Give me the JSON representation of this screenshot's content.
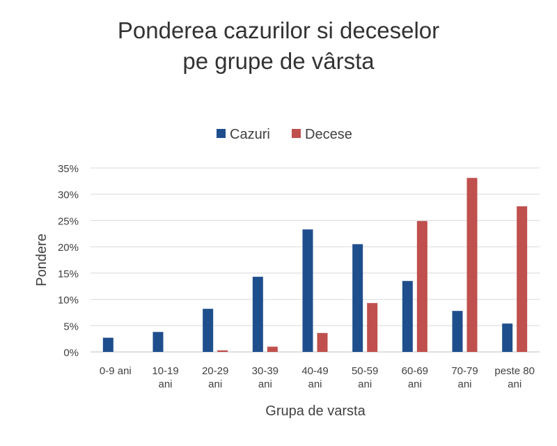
{
  "chart_data": {
    "type": "bar",
    "title_lines": [
      "Ponderea cazurilor si deceselor",
      "pe grupe de vârsta"
    ],
    "xlabel": "Grupa de varsta",
    "ylabel": "Pondere",
    "categories": [
      [
        "0-9 ani"
      ],
      [
        "10-19",
        "ani"
      ],
      [
        "20-29",
        "ani"
      ],
      [
        "30-39",
        "ani"
      ],
      [
        "40-49",
        "ani"
      ],
      [
        "50-59",
        "ani"
      ],
      [
        "60-69",
        "ani"
      ],
      [
        "70-79",
        "ani"
      ],
      [
        "peste 80",
        "ani"
      ]
    ],
    "series": [
      {
        "name": "Cazuri",
        "color": "#1f4e8c",
        "values": [
          2.7,
          3.8,
          8.2,
          14.3,
          23.3,
          20.5,
          13.5,
          7.8,
          5.4
        ]
      },
      {
        "name": "Decese",
        "color": "#c0504d",
        "values": [
          0.0,
          0.0,
          0.3,
          1.0,
          3.6,
          9.3,
          24.9,
          33.1,
          27.7
        ]
      }
    ],
    "ylim": [
      0,
      35
    ],
    "yticks": [
      "0%",
      "5%",
      "10%",
      "15%",
      "20%",
      "25%",
      "30%",
      "35%"
    ],
    "grid": true,
    "legend_position": "top-center"
  }
}
